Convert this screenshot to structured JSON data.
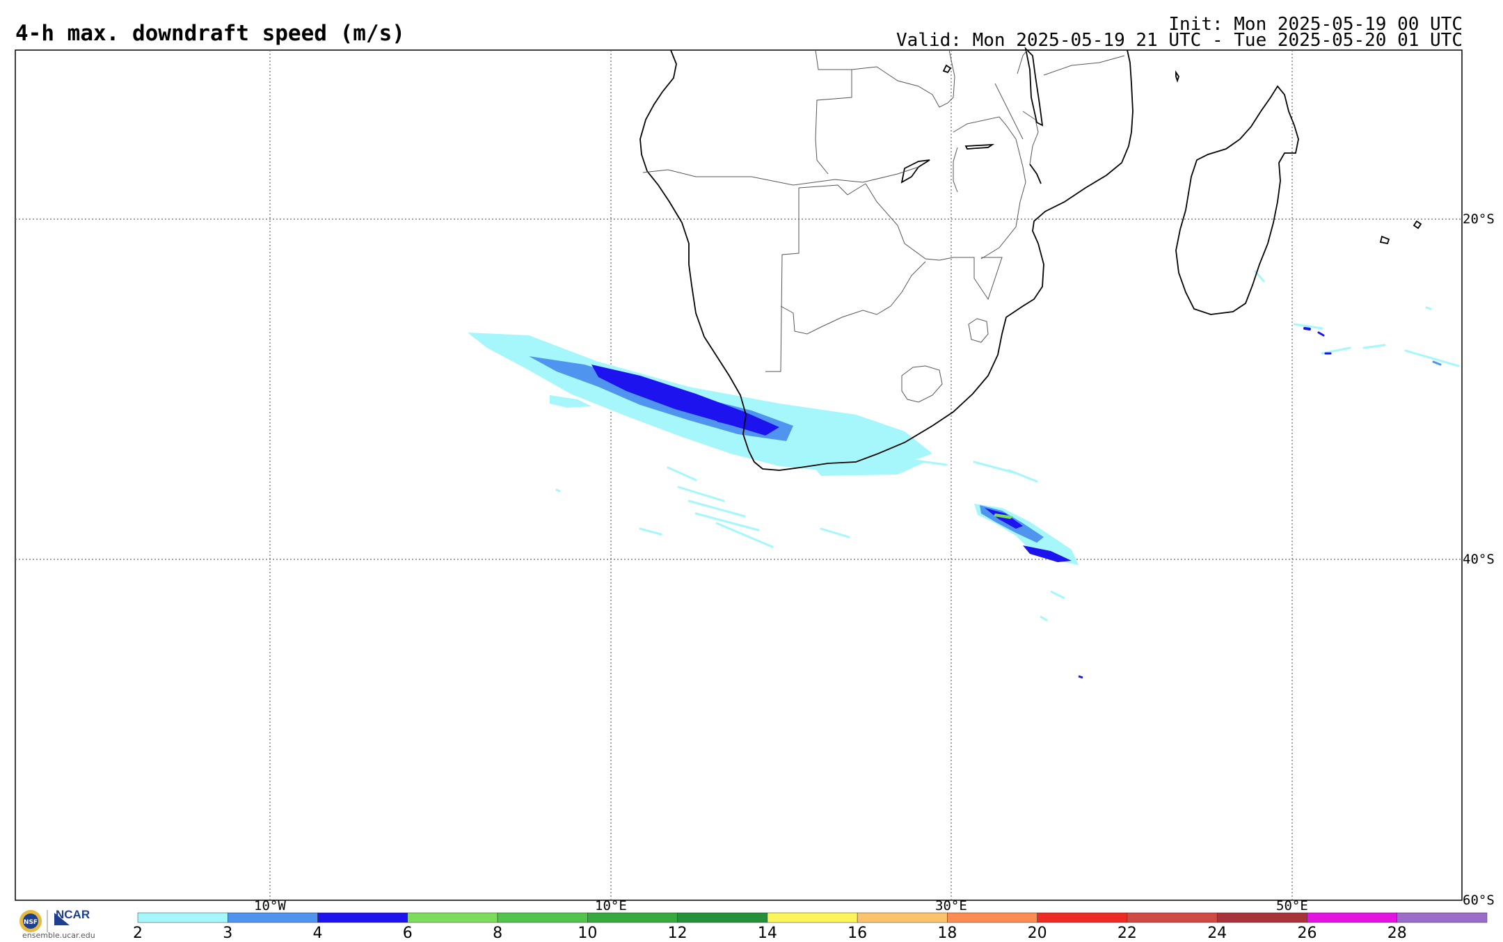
{
  "header": {
    "title": "4-h max. downdraft speed (m/s)",
    "init": "Init: Mon 2025-05-19 00 UTC",
    "valid": "Valid: Mon 2025-05-19 21 UTC - Tue 2025-05-20 01 UTC"
  },
  "map": {
    "longitude_labels": [
      "10°W",
      "10°E",
      "30°E",
      "50°E"
    ],
    "latitude_labels": [
      "20°S",
      "40°S",
      "60°S"
    ]
  },
  "colorbar": {
    "ticks": [
      "2",
      "3",
      "4",
      "6",
      "8",
      "10",
      "12",
      "14",
      "16",
      "18",
      "20",
      "22",
      "24",
      "26",
      "28"
    ],
    "colors": [
      "#a6f7fb",
      "#4f94ee",
      "#1c13ee",
      "#7ddc5c",
      "#52c34b",
      "#35a93c",
      "#23913a",
      "#fbf55b",
      "#fbc46a",
      "#fb8c52",
      "#ef2a24",
      "#d04a44",
      "#a8323a",
      "#e313e0",
      "#9a6bc9"
    ]
  },
  "footer": {
    "logo_org": "NCAR",
    "logo_url": "ensemble.ucar.edu"
  }
}
